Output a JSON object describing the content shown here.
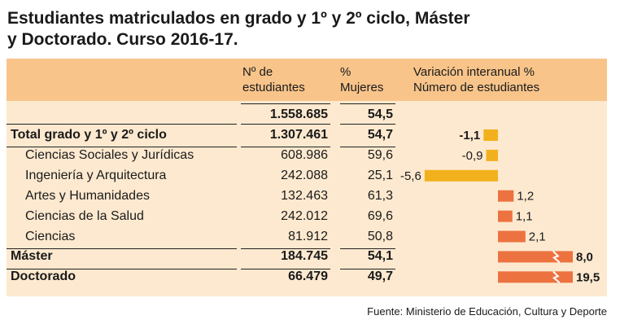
{
  "title": {
    "line1": "Estudiantes matriculados en grado y 1º y 2º ciclo, Máster",
    "line2": "y Doctorado. Curso 2016-17."
  },
  "header": {
    "n_line1": "Nº de",
    "n_line2": "estudiantes",
    "pct_line1": "%",
    "pct_line2": "Mujeres",
    "var_line1": "Variación interanual %",
    "var_line2": "Número de estudiantes"
  },
  "total_row": {
    "n": "1.558.685",
    "pct": "54,5"
  },
  "rows": [
    {
      "label": "Total grado y 1º y 2º ciclo",
      "n": "1.307.461",
      "pct": "54,7",
      "var": "-1,1",
      "bold": true
    },
    {
      "label": "Ciencias Sociales y Jurídicas",
      "n": "608.986",
      "pct": "59,6",
      "var": "-0,9",
      "bold": false
    },
    {
      "label": "Ingeniería y Arquitectura",
      "n": "242.088",
      "pct": "25,1",
      "var": "-5,6",
      "bold": false
    },
    {
      "label": "Artes y Humanidades",
      "n": "132.463",
      "pct": "61,3",
      "var": "1,2",
      "bold": false
    },
    {
      "label": "Ciencias de la Salud",
      "n": "242.012",
      "pct": "69,6",
      "var": "1,1",
      "bold": false
    },
    {
      "label": "Ciencias",
      "n": "81.912",
      "pct": "50,8",
      "var": "2,1",
      "bold": false
    },
    {
      "label": "Máster",
      "n": "184.745",
      "pct": "54,1",
      "var": "8,0",
      "bold": true
    },
    {
      "label": "Doctorado",
      "n": "66.479",
      "pct": "49,7",
      "var": "19,5",
      "bold": true
    }
  ],
  "chart_data": {
    "type": "bar",
    "orientation": "horizontal",
    "categories": [
      "Total grado y 1º y 2º ciclo",
      "Ciencias Sociales y Jurídicas",
      "Ingeniería y Arquitectura",
      "Artes y Humanidades",
      "Ciencias de la Salud",
      "Ciencias",
      "Máster",
      "Doctorado"
    ],
    "values": [
      -1.1,
      -0.9,
      -5.6,
      1.2,
      1.1,
      2.1,
      8.0,
      19.5
    ],
    "value_labels": [
      "-1,1",
      "-0,9",
      "-5,6",
      "1,2",
      "1,1",
      "2,1",
      "8,0",
      "19,5"
    ],
    "broken_axis_categories": [
      "Máster",
      "Doctorado"
    ],
    "title": "Variación interanual % Número de estudiantes",
    "colors": {
      "negative": "#f2b11c",
      "positive": "#ec7340"
    }
  },
  "source": "Fuente: Ministerio de Educación, Cultura y Deporte"
}
